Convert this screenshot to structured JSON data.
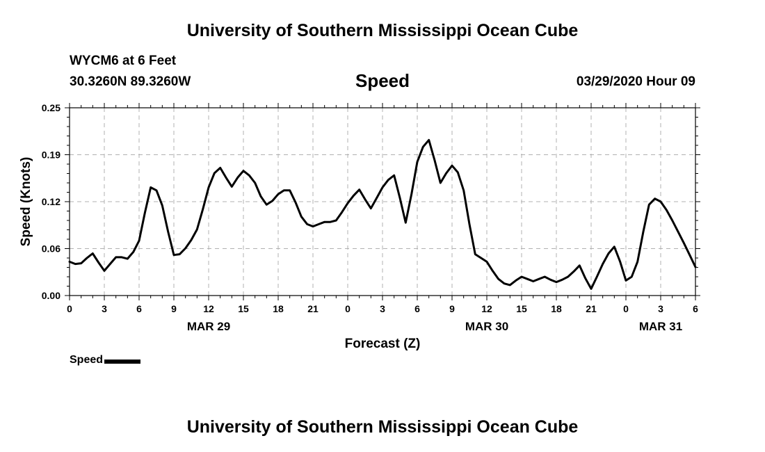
{
  "header": {
    "title": "University of Southern Mississippi Ocean Cube",
    "station": "WYCM6 at 6 Feet",
    "coordinates": "30.3260N 89.3260W",
    "variable": "Speed",
    "datestamp": "03/29/2020 Hour 09"
  },
  "footer": {
    "title": "University of Southern Mississippi Ocean Cube"
  },
  "legend": {
    "label": "Speed",
    "color": "#000000"
  },
  "chart_data": {
    "type": "line",
    "title": "Speed",
    "xlabel": "Forecast (Z)",
    "ylabel": "Speed (Knots)",
    "ylim": [
      0.0,
      0.25
    ],
    "yticks": [
      "0.00",
      "0.06",
      "0.12",
      "0.19",
      "0.25"
    ],
    "ytick_values": [
      0.0,
      0.0625,
      0.125,
      0.1875,
      0.25
    ],
    "xlim": [
      0,
      54
    ],
    "xticks": [
      "0",
      "3",
      "6",
      "9",
      "12",
      "15",
      "18",
      "21",
      "0",
      "3",
      "6",
      "9",
      "12",
      "15",
      "18",
      "21",
      "0",
      "3",
      "6"
    ],
    "date_labels": [
      {
        "label": "MAR 29",
        "hour": 12
      },
      {
        "label": "MAR 30",
        "hour": 36
      },
      {
        "label": "MAR 31",
        "hour": 51
      }
    ],
    "grid": true,
    "legend_position": "bottom-left",
    "series": [
      {
        "name": "Speed",
        "color": "#000000",
        "x": [
          0,
          0.5,
          1,
          1.5,
          2,
          2.5,
          3,
          3.5,
          4,
          4.5,
          5,
          5.5,
          6,
          6.5,
          7,
          7.5,
          8,
          8.5,
          9,
          9.5,
          10,
          10.5,
          11,
          11.5,
          12,
          12.5,
          13,
          13.5,
          14,
          14.5,
          15,
          15.5,
          16,
          16.5,
          17,
          17.5,
          18,
          18.5,
          19,
          19.5,
          20,
          20.5,
          21,
          21.5,
          22,
          22.5,
          23,
          23.5,
          24,
          24.5,
          25,
          25.5,
          26,
          26.5,
          27,
          27.5,
          28,
          28.5,
          29,
          29.5,
          30,
          30.5,
          31,
          31.5,
          32,
          32.5,
          33,
          33.5,
          34,
          34.5,
          35,
          35.5,
          36,
          36.5,
          37,
          37.5,
          38,
          38.5,
          39,
          39.5,
          40,
          40.5,
          41,
          41.5,
          42,
          42.5,
          43,
          43.5,
          44,
          44.5,
          45,
          45.5,
          46,
          46.5,
          47,
          47.5,
          48,
          48.5,
          49,
          49.5,
          50,
          50.5,
          51,
          51.5,
          52,
          52.5,
          53,
          53.5,
          54
        ],
        "values": [
          0.045,
          0.042,
          0.043,
          0.05,
          0.056,
          0.044,
          0.033,
          0.042,
          0.051,
          0.051,
          0.049,
          0.058,
          0.073,
          0.11,
          0.144,
          0.14,
          0.12,
          0.085,
          0.054,
          0.055,
          0.063,
          0.074,
          0.088,
          0.115,
          0.144,
          0.163,
          0.17,
          0.157,
          0.145,
          0.157,
          0.166,
          0.16,
          0.15,
          0.132,
          0.121,
          0.126,
          0.135,
          0.14,
          0.14,
          0.124,
          0.105,
          0.095,
          0.092,
          0.095,
          0.098,
          0.098,
          0.1,
          0.111,
          0.123,
          0.133,
          0.141,
          0.128,
          0.116,
          0.13,
          0.144,
          0.154,
          0.16,
          0.13,
          0.097,
          0.135,
          0.178,
          0.198,
          0.207,
          0.18,
          0.15,
          0.163,
          0.173,
          0.164,
          0.14,
          0.095,
          0.055,
          0.05,
          0.045,
          0.033,
          0.022,
          0.016,
          0.014,
          0.02,
          0.025,
          0.022,
          0.019,
          0.022,
          0.025,
          0.021,
          0.018,
          0.021,
          0.025,
          0.032,
          0.04,
          0.023,
          0.009,
          0.025,
          0.042,
          0.056,
          0.065,
          0.045,
          0.02,
          0.025,
          0.045,
          0.085,
          0.121,
          0.129,
          0.125,
          0.114,
          0.1,
          0.085,
          0.07,
          0.054,
          0.038
        ]
      }
    ]
  }
}
